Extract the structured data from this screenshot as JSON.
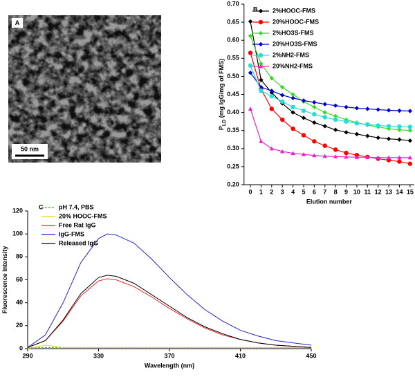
{
  "image_panel": {
    "label": "A",
    "scale_bar": "50 nm"
  },
  "chart_data": [
    {
      "type": "line",
      "panel_label": "B",
      "ylabel": [
        "P",
        "LD",
        " (mg IgG/mg of FMS)"
      ],
      "xlabel": "Elution number",
      "x": [
        0,
        1,
        2,
        3,
        4,
        5,
        6,
        7,
        8,
        9,
        10,
        11,
        12,
        13,
        14,
        15
      ],
      "xlim": [
        -0.6,
        15.4
      ],
      "xticks": [
        0,
        1,
        2,
        3,
        4,
        5,
        6,
        7,
        8,
        9,
        10,
        11,
        12,
        13,
        14,
        15
      ],
      "ylim": [
        0.2,
        0.7
      ],
      "yticks": [
        {
          "value": 0.2,
          "label": "0.20"
        },
        0.25,
        {
          "value": 0.3,
          "label": "0.30"
        },
        0.35,
        {
          "value": 0.4,
          "label": "0.40"
        },
        0.45,
        {
          "value": 0.5,
          "label": "0.50"
        },
        0.55,
        {
          "value": 0.6,
          "label": "0.60"
        },
        0.65,
        {
          "value": 0.7,
          "label": "0.70"
        }
      ],
      "legend": "top-right",
      "series": [
        {
          "name": "2%HOOC-FMS",
          "color": "#000000",
          "marker": "diamond",
          "values": [
            0.652,
            0.49,
            0.455,
            0.425,
            0.4,
            0.385,
            0.372,
            0.362,
            0.352,
            0.345,
            0.34,
            0.335,
            0.33,
            0.327,
            0.325,
            0.322
          ]
        },
        {
          "name": "20%HOOC-FMS",
          "color": "#ff0000",
          "marker": "circle",
          "values": [
            0.565,
            0.465,
            0.41,
            0.38,
            0.355,
            0.337,
            0.32,
            0.308,
            0.297,
            0.288,
            0.282,
            0.277,
            0.272,
            0.268,
            0.264,
            0.258
          ]
        },
        {
          "name": "2%HO3S-FMS",
          "color": "#33dd22",
          "marker": "diamond",
          "values": [
            0.612,
            0.535,
            0.495,
            0.47,
            0.45,
            0.43,
            0.415,
            0.4,
            0.39,
            0.38,
            0.372,
            0.365,
            0.36,
            0.355,
            0.352,
            0.35
          ]
        },
        {
          "name": "20%HO3S-FMS",
          "color": "#0000cc",
          "marker": "diamond",
          "values": [
            0.51,
            0.47,
            0.46,
            0.448,
            0.44,
            0.433,
            0.428,
            0.423,
            0.419,
            0.415,
            0.412,
            0.41,
            0.408,
            0.406,
            0.405,
            0.404
          ]
        },
        {
          "name": "2%NH2-FMS",
          "color": "#22dddd",
          "marker": "circle",
          "values": [
            0.53,
            0.46,
            0.445,
            0.43,
            0.415,
            0.405,
            0.395,
            0.387,
            0.38,
            0.375,
            0.37,
            0.367,
            0.364,
            0.362,
            0.361,
            0.36
          ]
        },
        {
          "name": "20%NH2-FMS",
          "color": "#ee22cc",
          "marker": "triangle",
          "values": [
            0.41,
            0.32,
            0.3,
            0.292,
            0.287,
            0.284,
            0.281,
            0.279,
            0.278,
            0.277,
            0.276,
            0.276,
            0.275,
            0.275,
            0.275,
            0.275
          ]
        }
      ]
    },
    {
      "type": "line",
      "panel_label": "C",
      "ylabel": [
        "Fluorescence Intensity"
      ],
      "xlabel": "Wavelength (nm)",
      "x": [
        290,
        300,
        310,
        320,
        330,
        335,
        340,
        350,
        360,
        370,
        380,
        390,
        400,
        410,
        420,
        430,
        440,
        450
      ],
      "xlim": [
        290,
        450
      ],
      "xticks": [
        290,
        330,
        370,
        410,
        450
      ],
      "ylim": [
        0,
        120
      ],
      "yticks": [
        0,
        20,
        40,
        60,
        80,
        100,
        120
      ],
      "legend": "top-right",
      "series": [
        {
          "name": "pH 7.4, PBS",
          "color": "#33aa33",
          "dash": true,
          "values": [
            1,
            1,
            1,
            1,
            1,
            1,
            1,
            1,
            1,
            1,
            1,
            1,
            1,
            1,
            1,
            1,
            1,
            1
          ]
        },
        {
          "name": "20% HOOC-FMS",
          "color": "#dddd00",
          "values": [
            0,
            3,
            1,
            1,
            1,
            1,
            1,
            1,
            1,
            1,
            1,
            1,
            1,
            1,
            1,
            1,
            1,
            1
          ]
        },
        {
          "name": "Free Rat IgG",
          "color": "#ee2222",
          "values": [
            1,
            7,
            24,
            46,
            59,
            61,
            60,
            54,
            45,
            35,
            26,
            18,
            12,
            8,
            5,
            3,
            2,
            1
          ]
        },
        {
          "name": "IgG-FMS",
          "color": "#2222cc",
          "values": [
            1,
            12,
            40,
            75,
            96,
            100,
            99,
            92,
            78,
            62,
            47,
            34,
            24,
            16,
            11,
            7,
            5,
            3
          ]
        },
        {
          "name": "Released IgG",
          "color": "#000000",
          "values": [
            1,
            7,
            25,
            48,
            62,
            64,
            63,
            57,
            47,
            37,
            27,
            19,
            13,
            8,
            5,
            3,
            2,
            1
          ]
        }
      ]
    }
  ]
}
